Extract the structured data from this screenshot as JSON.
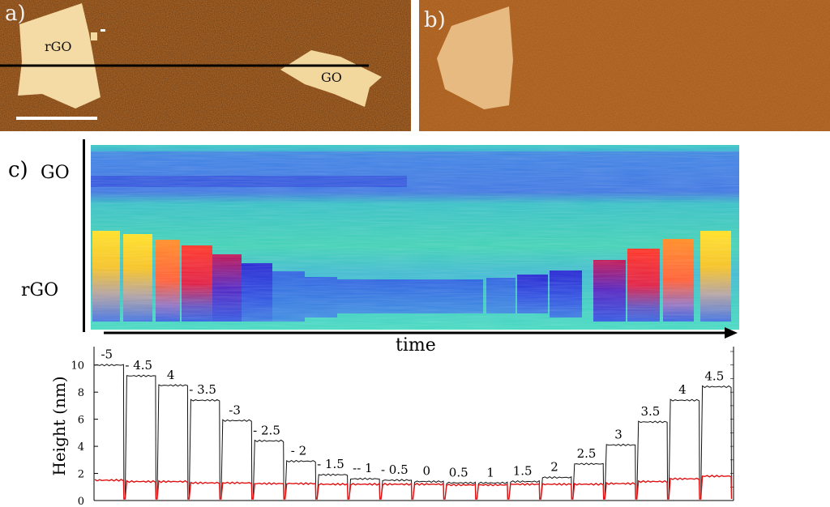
{
  "figure": {
    "panel_a": {
      "label": "a)",
      "flake_rgo": "rGO",
      "flake_go": "GO"
    },
    "panel_b": {
      "label": "b)"
    },
    "panel_c": {
      "label": "c)",
      "row_go": "GO",
      "row_rgo": "rGO",
      "time_label": "time"
    },
    "colors": {
      "afm_bg": "#b65d14",
      "flake": "#f3d8a2",
      "line": "#000000",
      "series_black": "#111111",
      "series_red": "#e01010"
    }
  },
  "chart_data": {
    "type": "line",
    "ylabel": "Height (nm)",
    "ylim": [
      0,
      11
    ],
    "yticks": [
      0,
      2,
      4,
      6,
      8,
      10
    ],
    "step_labels": [
      "-5",
      "- 4.5",
      "4",
      "- 3.5",
      "-3",
      "- 2.5",
      "- 2",
      "- 1.5",
      "-- 1",
      "- 0.5",
      "0",
      "0.5",
      "1",
      "1.5",
      "2",
      "2.5",
      "3",
      "3.5",
      "4",
      "4.5"
    ],
    "series": [
      {
        "name": "rGO",
        "color": "#111111",
        "values": [
          10.0,
          9.2,
          8.5,
          7.4,
          5.9,
          4.4,
          2.9,
          1.9,
          1.6,
          1.5,
          1.4,
          1.3,
          1.3,
          1.4,
          1.7,
          2.7,
          4.1,
          5.8,
          7.4,
          8.4
        ]
      },
      {
        "name": "GO",
        "color": "#e01010",
        "values": [
          1.5,
          1.4,
          1.4,
          1.3,
          1.3,
          1.25,
          1.25,
          1.2,
          1.2,
          1.2,
          1.2,
          1.15,
          1.15,
          1.2,
          1.2,
          1.2,
          1.25,
          1.4,
          1.6,
          1.8
        ]
      }
    ]
  }
}
